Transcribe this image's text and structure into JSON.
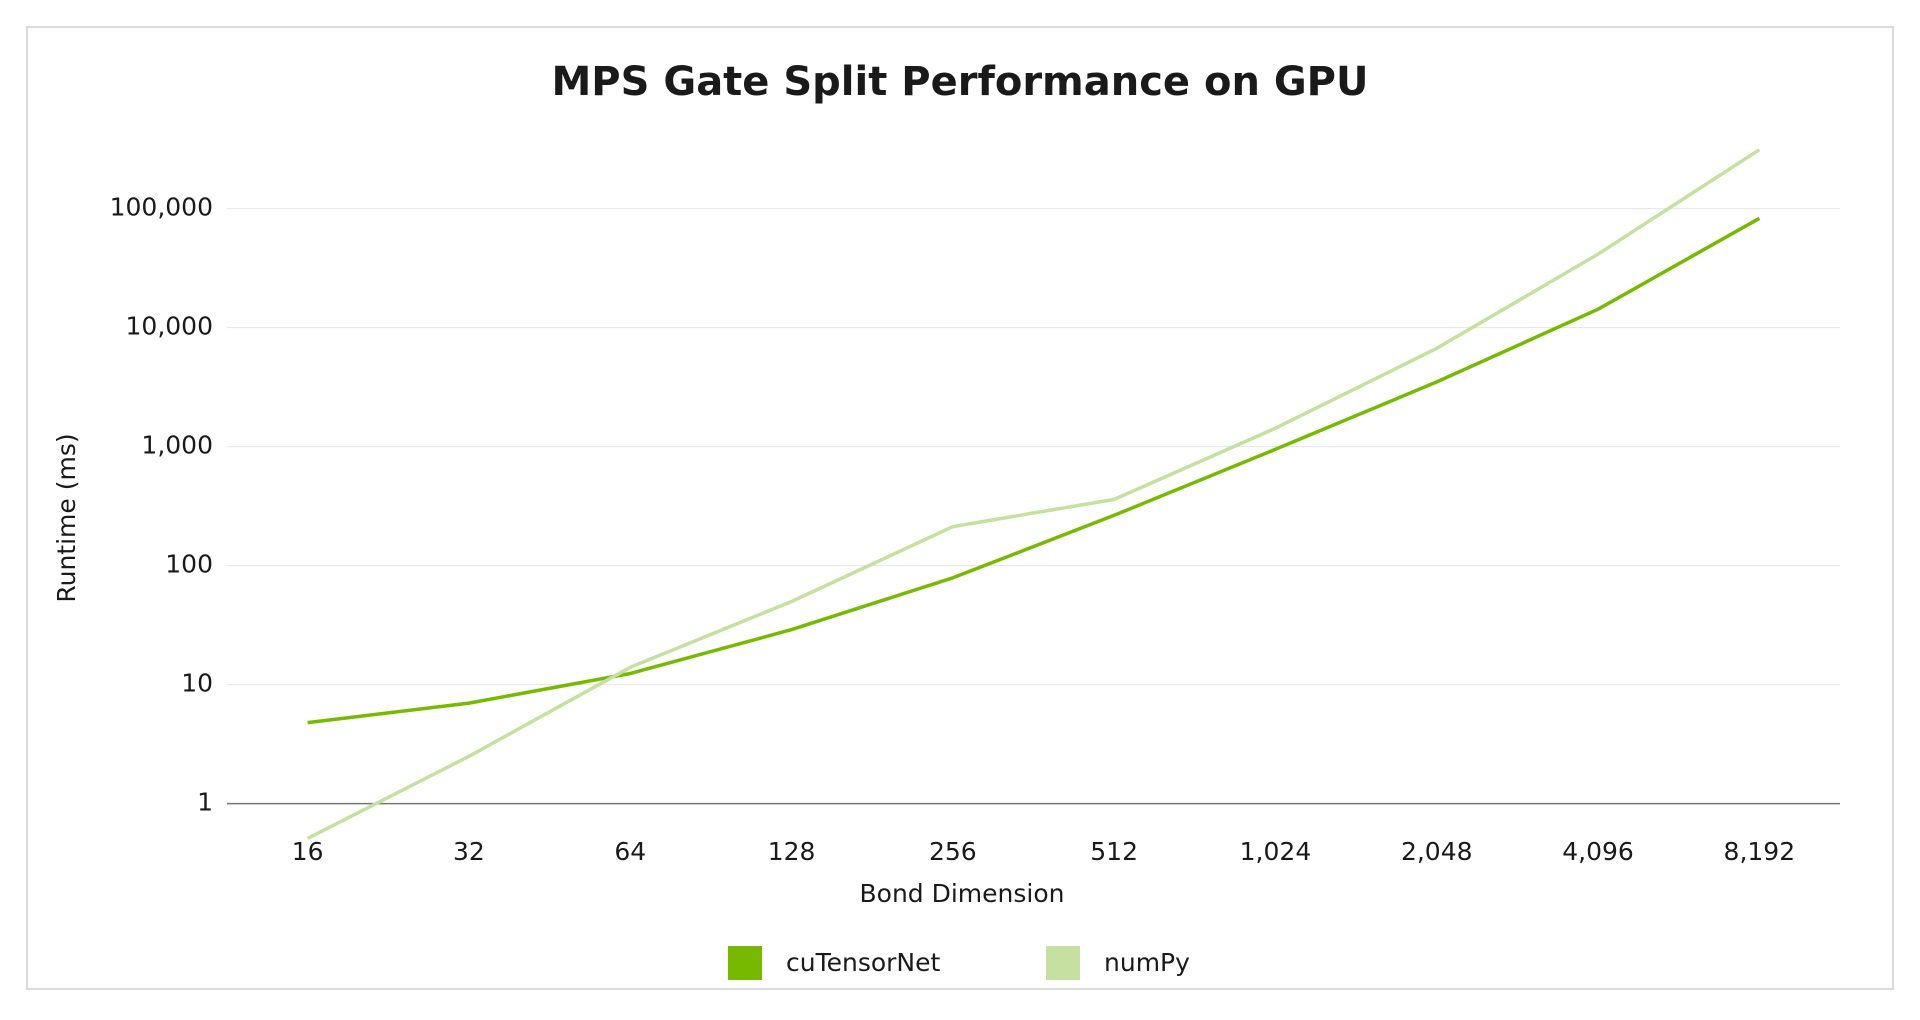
{
  "chart_data": {
    "type": "line",
    "title": "MPS Gate Split Performance on GPU",
    "x_label": "Bond Dimension",
    "y_label": "Runtime (ms)",
    "categories": [
      "16",
      "32",
      "64",
      "128",
      "256",
      "512",
      "1,024",
      "2,048",
      "4,096",
      "8,192"
    ],
    "series": [
      {
        "name": "cuTensorNet",
        "color": "#76b900",
        "values": [
          4.8,
          7,
          12.4,
          29,
          79,
          265,
          950,
          3500,
          14300,
          83000
        ]
      },
      {
        "name": "numPy",
        "color": "#c5e0a0",
        "values": [
          0.51,
          2.5,
          14,
          50,
          213,
          360,
          1430,
          6700,
          41500,
          313000
        ]
      }
    ],
    "y_scale": "log",
    "ylim": [
      0.4,
      400000
    ],
    "yticks": [
      1,
      10,
      100,
      {
        "value": 1000,
        "label": "1,000"
      },
      {
        "value": 10000,
        "label": "10,000"
      },
      {
        "value": 100000,
        "label": "100,000"
      }
    ],
    "grid": true,
    "legend": "bottom"
  }
}
